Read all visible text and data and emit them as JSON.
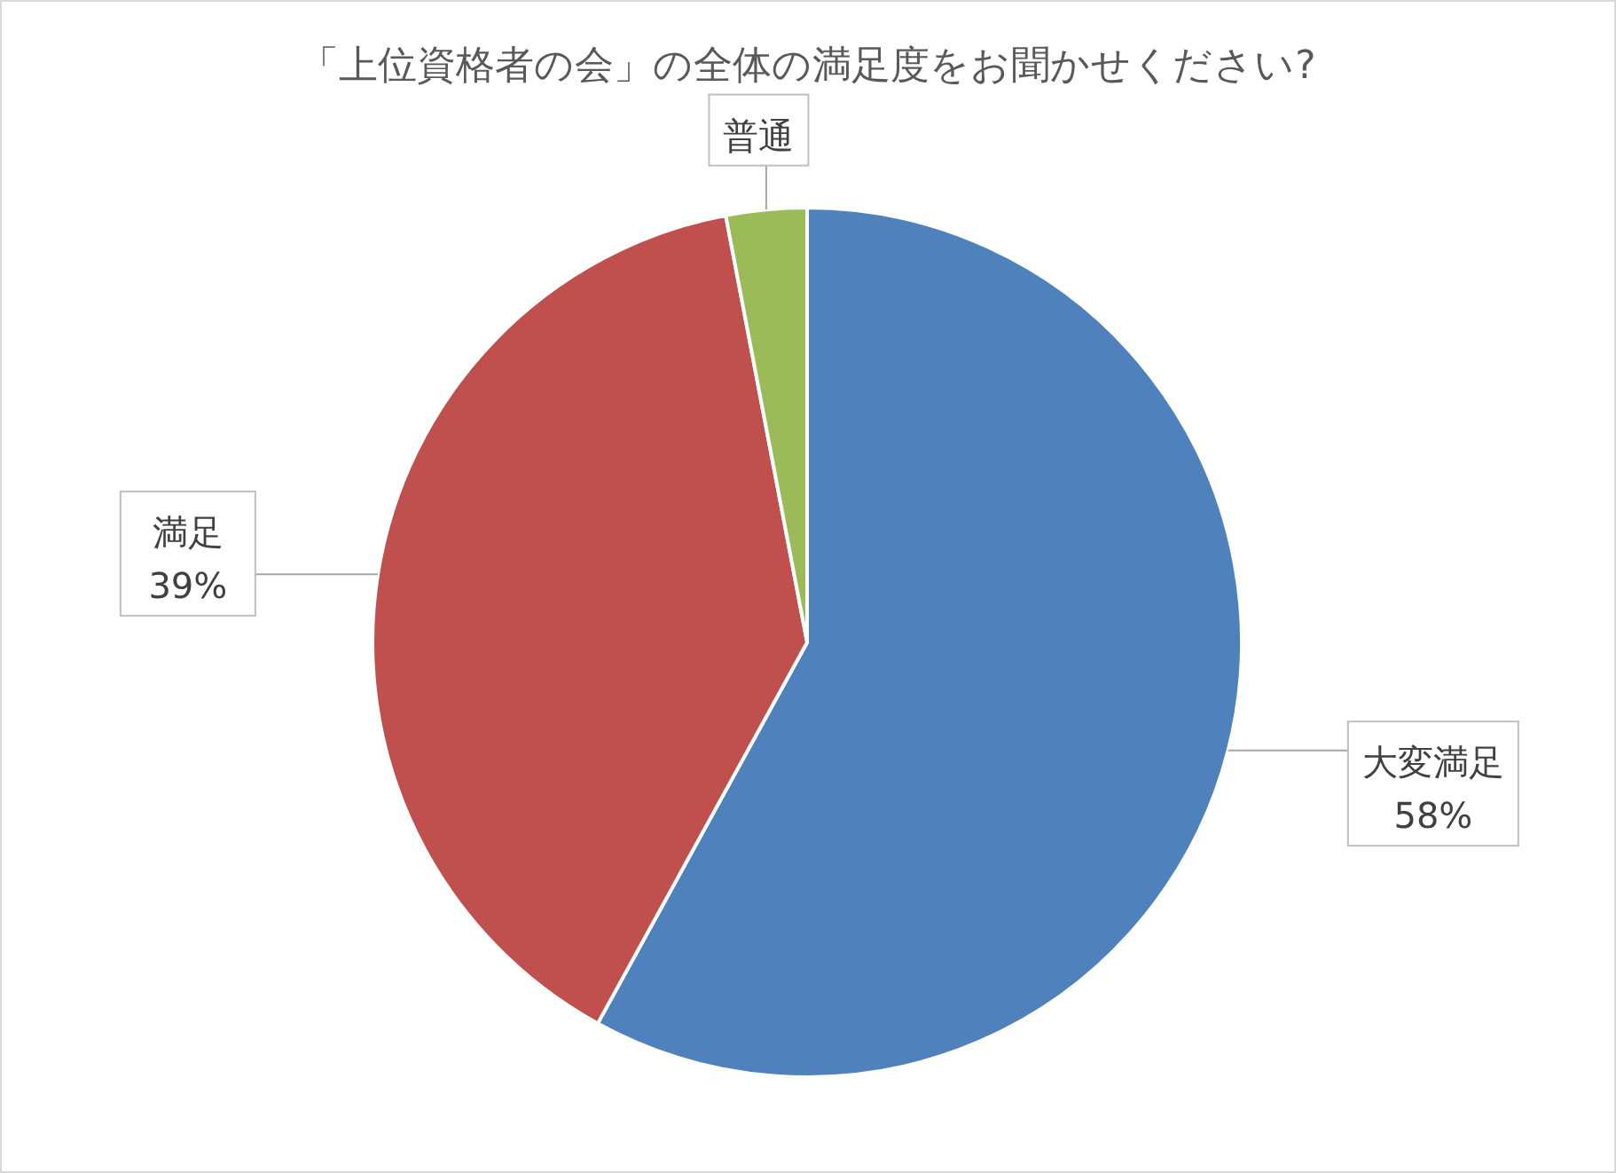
{
  "chart_data": {
    "type": "pie",
    "title": "「上位資格者の会」の全体の満足度をお聞かせください?",
    "categories": [
      "大変満足",
      "満足",
      "普通"
    ],
    "values": [
      58,
      39,
      3
    ],
    "colors": [
      "#4f81bd",
      "#c0504d",
      "#9bbb59"
    ],
    "value_labels": [
      "58%",
      "39%",
      null
    ],
    "legend": false
  }
}
